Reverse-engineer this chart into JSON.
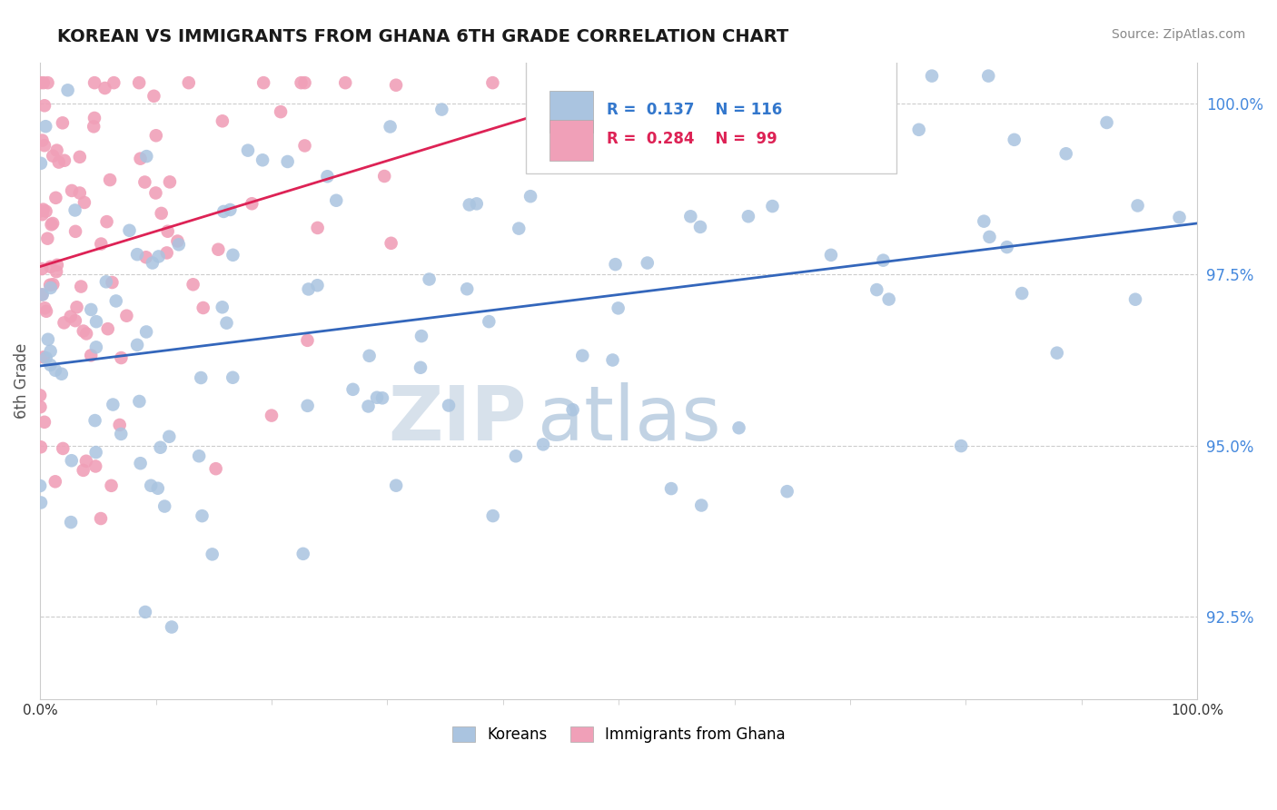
{
  "title": "KOREAN VS IMMIGRANTS FROM GHANA 6TH GRADE CORRELATION CHART",
  "source_text": "Source: ZipAtlas.com",
  "ylabel": "6th Grade",
  "ytick_values": [
    92.5,
    95.0,
    97.5,
    100.0
  ],
  "R_korean": 0.137,
  "N_korean": 116,
  "R_ghana": 0.284,
  "N_ghana": 99,
  "blue_color": "#aac4e0",
  "pink_color": "#f0a0b8",
  "blue_line_color": "#3366bb",
  "pink_line_color": "#dd2255",
  "legend_box_blue": "#aac4e0",
  "legend_box_pink": "#f0a0b8",
  "legend_text_blue": "#3377cc",
  "legend_text_pink": "#dd2255",
  "ytick_color": "#4488dd",
  "xtick_color": "#333333",
  "watermark_zip": "ZIP",
  "watermark_atlas": "atlas",
  "background_color": "#ffffff",
  "grid_color": "#cccccc",
  "ylabel_color": "#555555",
  "spine_color": "#cccccc"
}
